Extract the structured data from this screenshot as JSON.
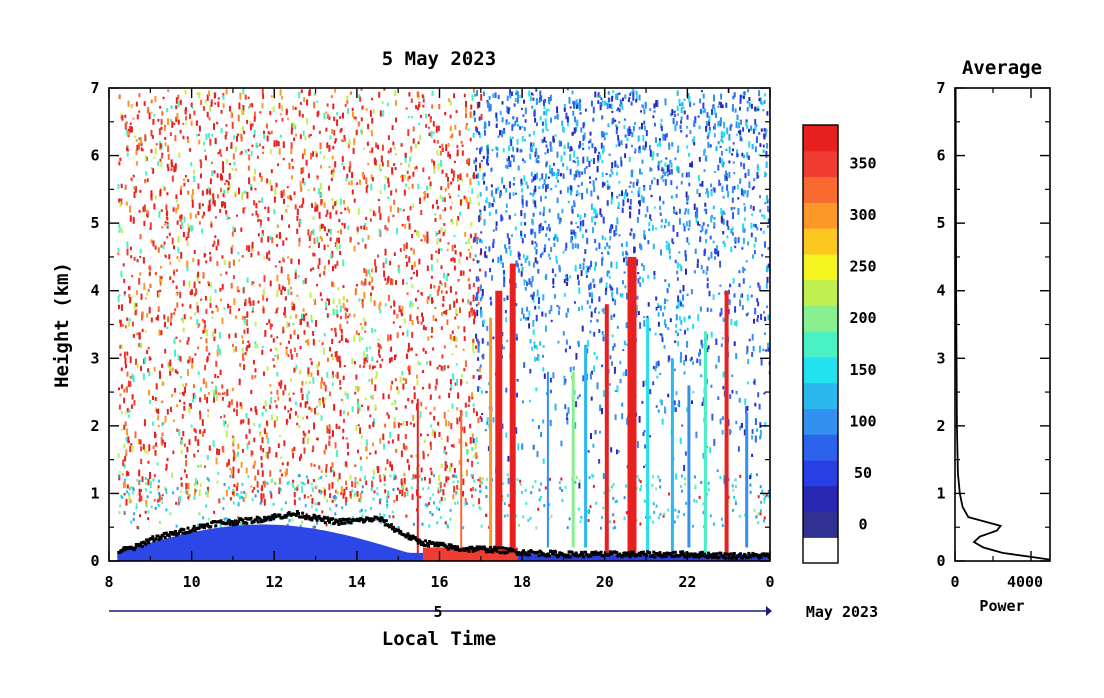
{
  "chart_data": [
    {
      "type": "heatmap",
      "title": "5 May 2023",
      "xlabel": "Local Time",
      "ylabel": "Height (km)",
      "date_label": "5",
      "date_suffix": "May 2023",
      "x_ticks": [
        "8",
        "10",
        "12",
        "14",
        "16",
        "18",
        "20",
        "22",
        "0"
      ],
      "x_range_hours": [
        8,
        24
      ],
      "y_ticks": [
        "0",
        "1",
        "2",
        "3",
        "4",
        "5",
        "6",
        "7"
      ],
      "y_range_km": [
        0,
        7
      ],
      "colorbar": {
        "tick_labels": [
          "0",
          "50",
          "100",
          "150",
          "200",
          "250",
          "300",
          "350"
        ],
        "range": [
          0,
          375
        ],
        "colors": [
          "#ffffff",
          "#303090",
          "#2828b4",
          "#2a3ee6",
          "#2d62ec",
          "#3390ee",
          "#2ab8ee",
          "#22e2f0",
          "#48f0c4",
          "#88f08e",
          "#c0f050",
          "#f4f420",
          "#fcc820",
          "#fc9828",
          "#f86a30",
          "#f03c32",
          "#e82020"
        ]
      },
      "mixing_layer_height_km": [
        [
          8.2,
          0.17
        ],
        [
          8.6,
          0.22
        ],
        [
          9.0,
          0.35
        ],
        [
          9.5,
          0.42
        ],
        [
          10.0,
          0.5
        ],
        [
          10.5,
          0.58
        ],
        [
          11.0,
          0.6
        ],
        [
          11.5,
          0.63
        ],
        [
          12.0,
          0.68
        ],
        [
          12.5,
          0.72
        ],
        [
          13.0,
          0.65
        ],
        [
          13.5,
          0.6
        ],
        [
          14.0,
          0.62
        ],
        [
          14.5,
          0.65
        ],
        [
          15.0,
          0.45
        ],
        [
          15.5,
          0.3
        ],
        [
          16.0,
          0.25
        ],
        [
          16.5,
          0.2
        ],
        [
          17.0,
          0.2
        ],
        [
          17.5,
          0.18
        ],
        [
          18.0,
          0.15
        ],
        [
          19.0,
          0.12
        ],
        [
          20.0,
          0.12
        ],
        [
          21.0,
          0.12
        ],
        [
          22.0,
          0.12
        ],
        [
          23.0,
          0.1
        ],
        [
          24.0,
          0.1
        ]
      ]
    },
    {
      "type": "line",
      "title": "Average",
      "xlabel": "Power",
      "x_ticks": [
        "0",
        "4000"
      ],
      "x_range": [
        0,
        5000
      ],
      "y_ticks": [
        "0",
        "1",
        "2",
        "3",
        "4",
        "5",
        "6",
        "7"
      ],
      "y_range_km": [
        0,
        7
      ],
      "profile": [
        [
          5000,
          0.02
        ],
        [
          4000,
          0.06
        ],
        [
          2500,
          0.12
        ],
        [
          1500,
          0.2
        ],
        [
          1000,
          0.28
        ],
        [
          1300,
          0.36
        ],
        [
          2200,
          0.45
        ],
        [
          2400,
          0.52
        ],
        [
          1600,
          0.58
        ],
        [
          700,
          0.65
        ],
        [
          400,
          0.8
        ],
        [
          250,
          1.0
        ],
        [
          150,
          1.3
        ],
        [
          100,
          2.0
        ],
        [
          60,
          4.0
        ],
        [
          40,
          6.0
        ],
        [
          30,
          7.0
        ]
      ]
    }
  ]
}
